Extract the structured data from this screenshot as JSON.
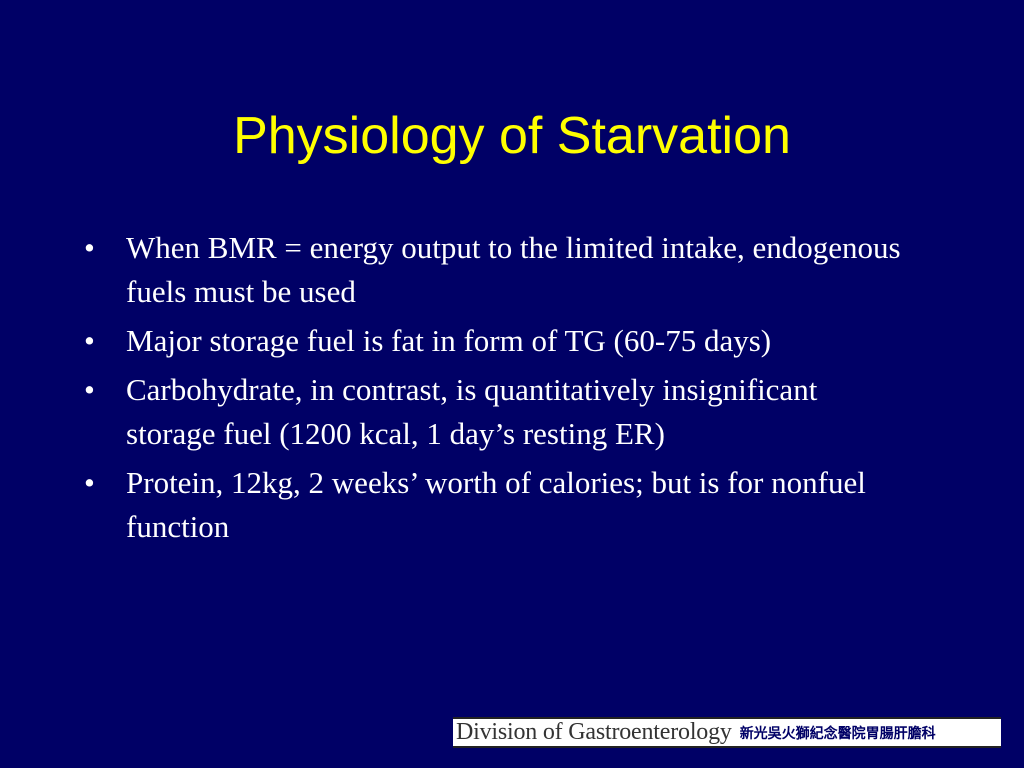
{
  "slide": {
    "title": "Physiology of Starvation",
    "bullets": [
      "When BMR = energy output to the limited intake, endogenous fuels must be used",
      "Major storage fuel is fat in form of TG (60-75 days)",
      "Carbohydrate, in contrast, is quantitatively insignificant storage fuel (1200 kcal, 1 day’s resting ER)",
      "Protein, 12kg, 2 weeks’ worth of calories; but is for nonfuel function"
    ],
    "bullet_glyph": "•"
  },
  "footer": {
    "division": "Division of Gastroenterology",
    "hospital": "新光吳火獅紀念醫院胃腸肝膽科"
  },
  "colors": {
    "background": "#000066",
    "title": "#FFFF00",
    "text": "#FFFFFF"
  }
}
